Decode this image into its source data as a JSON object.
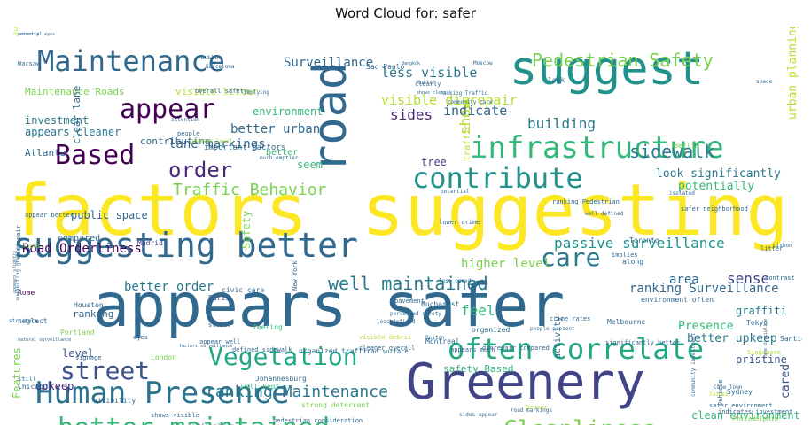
{
  "chart_data": {
    "type": "wordcloud",
    "title": "Word Cloud for: safer",
    "words": [
      {
        "text": "factors",
        "size": 80,
        "color": "#fde725"
      },
      {
        "text": "suggesting",
        "size": 80,
        "color": "#fde725"
      },
      {
        "text": "appears safer",
        "size": 68,
        "color": "#31688e"
      },
      {
        "text": "Greenery",
        "size": 56,
        "color": "#414487"
      },
      {
        "text": "suggest",
        "size": 52,
        "color": "#21918c"
      },
      {
        "text": "road",
        "size": 52,
        "color": "#31688e",
        "rotate": true
      },
      {
        "text": "suggesting better",
        "size": 38,
        "color": "#31688e"
      },
      {
        "text": "Human Presence",
        "size": 34,
        "color": "#2c728e"
      },
      {
        "text": "infrastructure",
        "size": 34,
        "color": "#35b779"
      },
      {
        "text": "contribute",
        "size": 32,
        "color": "#21918c"
      },
      {
        "text": "often correlate",
        "size": 32,
        "color": "#22a884"
      },
      {
        "text": "Maintenance",
        "size": 32,
        "color": "#31688e"
      },
      {
        "text": "better maintained",
        "size": 30,
        "color": "#35b779"
      },
      {
        "text": "Based",
        "size": 30,
        "color": "#440154"
      },
      {
        "text": "appear",
        "size": 30,
        "color": "#440154"
      },
      {
        "text": "Vegetation",
        "size": 28,
        "color": "#22a884"
      },
      {
        "text": "street",
        "size": 28,
        "color": "#3b528b"
      },
      {
        "text": "care",
        "size": 28,
        "color": "#2a788e"
      },
      {
        "text": "Cleanliness",
        "size": 26,
        "color": "#7ad151"
      },
      {
        "text": "order",
        "size": 24,
        "color": "#482878"
      },
      {
        "text": "Pedestrian Safety",
        "size": 20,
        "color": "#7ad151"
      },
      {
        "text": "well maintained",
        "size": 20,
        "color": "#2a788e"
      },
      {
        "text": "sidewalk",
        "size": 20,
        "color": "#2a788e"
      },
      {
        "text": "Traffic Behavior",
        "size": 18,
        "color": "#7ad151"
      },
      {
        "text": "ranking Maintenance",
        "size": 18,
        "color": "#2a788e"
      },
      {
        "text": "passive surveillance",
        "size": 16,
        "color": "#21918c"
      },
      {
        "text": "sides",
        "size": 16,
        "color": "#482878"
      },
      {
        "text": "building",
        "size": 16,
        "color": "#2a788e"
      },
      {
        "text": "show",
        "size": 16,
        "color": "#b5de2b",
        "rotate": true
      },
      {
        "text": "visible disrepair",
        "size": 15,
        "color": "#b5de2b"
      },
      {
        "text": "less visible",
        "size": 15,
        "color": "#2a788e"
      },
      {
        "text": "indicate",
        "size": 15,
        "color": "#31688e"
      },
      {
        "text": "Surveillance",
        "size": 14,
        "color": "#31688e"
      },
      {
        "text": "better urban",
        "size": 14,
        "color": "#31688e"
      },
      {
        "text": "lane markings",
        "size": 14,
        "color": "#31688e"
      },
      {
        "text": "sense",
        "size": 16,
        "color": "#414487"
      },
      {
        "text": "higher level",
        "size": 14,
        "color": "#7ad151"
      },
      {
        "text": "feel",
        "size": 16,
        "color": "#35b779"
      },
      {
        "text": "area",
        "size": 14,
        "color": "#31688e"
      },
      {
        "text": "ranking Surveillance",
        "size": 14,
        "color": "#31688e"
      },
      {
        "text": "better order",
        "size": 14,
        "color": "#2a788e"
      },
      {
        "text": "Road Orderliness",
        "size": 14,
        "color": "#440154"
      },
      {
        "text": "potentially",
        "size": 13,
        "color": "#35b779"
      },
      {
        "text": "look significantly",
        "size": 13,
        "color": "#2a788e"
      },
      {
        "text": "urban planning",
        "size": 13,
        "color": "#b5de2b",
        "rotate": true
      },
      {
        "text": "Presence",
        "size": 13,
        "color": "#35b779"
      },
      {
        "text": "better upkeep",
        "size": 13,
        "color": "#2a788e"
      },
      {
        "text": "graffiti",
        "size": 12,
        "color": "#2a788e"
      },
      {
        "text": "pristine",
        "size": 12,
        "color": "#3b528b"
      },
      {
        "text": "clean environment",
        "size": 12,
        "color": "#35b779"
      },
      {
        "text": "cared",
        "size": 13,
        "color": "#3b528b",
        "rotate": true
      },
      {
        "text": "public space",
        "size": 12,
        "color": "#31688e"
      },
      {
        "text": "seem",
        "size": 12,
        "color": "#35b779"
      },
      {
        "text": "tree",
        "size": 12,
        "color": "#414487"
      },
      {
        "text": "environment",
        "size": 12,
        "color": "#35b779"
      },
      {
        "text": "investment",
        "size": 12,
        "color": "#2a788e"
      },
      {
        "text": "appears cleaner",
        "size": 12,
        "color": "#2a788e"
      },
      {
        "text": "Atlanta",
        "size": 11,
        "color": "#31688e"
      },
      {
        "text": "Maintenance Roads",
        "size": 11,
        "color": "#7ad151"
      },
      {
        "text": "visible litter",
        "size": 11,
        "color": "#b5de2b"
      },
      {
        "text": "compared",
        "size": 10,
        "color": "#31688e"
      },
      {
        "text": "ranking",
        "size": 11,
        "color": "#31688e"
      },
      {
        "text": "level",
        "size": 12,
        "color": "#3b528b"
      },
      {
        "text": "upkeep",
        "size": 12,
        "color": "#482878"
      },
      {
        "text": "Features",
        "size": 12,
        "color": "#7ad151",
        "rotate": true
      },
      {
        "text": "Safety",
        "size": 12,
        "color": "#7ad151",
        "rotate": true
      },
      {
        "text": "safety Based",
        "size": 11,
        "color": "#35b779"
      },
      {
        "text": "activity",
        "size": 10,
        "color": "#31688e",
        "rotate": true
      },
      {
        "text": "traffic flow",
        "size": 10,
        "color": "#b5de2b",
        "rotate": true
      },
      {
        "text": "contributing",
        "size": 11,
        "color": "#31688e"
      },
      {
        "text": "clear lane",
        "size": 11,
        "color": "#31688e",
        "rotate": true
      },
      {
        "text": "important factors",
        "size": 9,
        "color": "#31688e"
      },
      {
        "text": "better",
        "size": 10,
        "color": "#35b779"
      },
      {
        "text": "Johannesburg",
        "size": 8,
        "color": "#31688e"
      },
      {
        "text": "well kept",
        "size": 8,
        "color": "#35b779"
      },
      {
        "text": "strong deterrent",
        "size": 8,
        "color": "#7ad151"
      },
      {
        "text": "organized traffic",
        "size": 8,
        "color": "#31688e"
      },
      {
        "text": "London",
        "size": 8,
        "color": "#7ad151"
      },
      {
        "text": "Houston",
        "size": 8,
        "color": "#31688e"
      },
      {
        "text": "Portland",
        "size": 8,
        "color": "#7ad151"
      },
      {
        "text": "Madrid",
        "size": 8,
        "color": "#414487"
      },
      {
        "text": "Paris",
        "size": 8,
        "color": "#3b528b"
      },
      {
        "text": "Rome",
        "size": 8,
        "color": "#440154"
      },
      {
        "text": "Chicago",
        "size": 8,
        "color": "#31688e"
      },
      {
        "text": "Sao Paulo",
        "size": 8,
        "color": "#31688e"
      },
      {
        "text": "Berlin",
        "size": 8,
        "color": "#7ad151"
      },
      {
        "text": "Toronto",
        "size": 8,
        "color": "#31688e"
      },
      {
        "text": "Tokyo",
        "size": 8,
        "color": "#31688e"
      },
      {
        "text": "Santiago",
        "size": 8,
        "color": "#31688e"
      },
      {
        "text": "Singapore",
        "size": 7,
        "color": "#b5de2b"
      },
      {
        "text": "Sydney",
        "size": 8,
        "color": "#31688e"
      },
      {
        "text": "Montreal",
        "size": 8,
        "color": "#31688e"
      },
      {
        "text": "Melbourne",
        "size": 8,
        "color": "#31688e"
      },
      {
        "text": "Bucharest",
        "size": 8,
        "color": "#31688e"
      },
      {
        "text": "New York",
        "size": 7,
        "color": "#31688e",
        "rotate": true
      },
      {
        "text": "civic care",
        "size": 8,
        "color": "#31688e"
      },
      {
        "text": "street",
        "size": 7,
        "color": "#31688e"
      },
      {
        "text": "feeling",
        "size": 8,
        "color": "#35b779"
      },
      {
        "text": "neglect",
        "size": 8,
        "color": "#31688e"
      },
      {
        "text": "still",
        "size": 7,
        "color": "#31688e"
      },
      {
        "text": "focus",
        "size": 7,
        "color": "#7ad151"
      },
      {
        "text": "signage",
        "size": 7,
        "color": "#31688e"
      },
      {
        "text": "eyes",
        "size": 7,
        "color": "#31688e"
      },
      {
        "text": "appear well",
        "size": 7,
        "color": "#31688e"
      },
      {
        "text": "defined sidewalk",
        "size": 7,
        "color": "#31688e"
      },
      {
        "text": "visibility",
        "size": 8,
        "color": "#31688e"
      },
      {
        "text": "shows visible",
        "size": 7,
        "color": "#31688e"
      },
      {
        "text": "people walking",
        "size": 6,
        "color": "#31688e"
      },
      {
        "text": "pedestrian consideration",
        "size": 7,
        "color": "#31688e"
      },
      {
        "text": "sides appear",
        "size": 6,
        "color": "#31688e"
      },
      {
        "text": "Denver",
        "size": 7,
        "color": "#b5de2b"
      },
      {
        "text": "road markings",
        "size": 6,
        "color": "#31688e"
      },
      {
        "text": "community investment",
        "size": 6,
        "color": "#31688e",
        "rotate": true
      },
      {
        "text": "Taipei",
        "size": 6,
        "color": "#b5de2b"
      },
      {
        "text": "Cape Town",
        "size": 6,
        "color": "#31688e"
      },
      {
        "text": "safer environment",
        "size": 7,
        "color": "#31688e"
      },
      {
        "text": "vehicle",
        "size": 7,
        "color": "#31688e",
        "rotate": true
      },
      {
        "text": "Philadelphia",
        "size": 7,
        "color": "#7ad151"
      },
      {
        "text": "indicates investment",
        "size": 7,
        "color": "#31688e"
      },
      {
        "text": "road surface",
        "size": 7,
        "color": "#31688e"
      },
      {
        "text": "cleaner overall",
        "size": 7,
        "color": "#31688e"
      },
      {
        "text": "appears much",
        "size": 7,
        "color": "#31688e"
      },
      {
        "text": "less defined",
        "size": 6,
        "color": "#31688e"
      },
      {
        "text": "visible debris",
        "size": 7,
        "color": "#b5de2b"
      },
      {
        "text": "organized",
        "size": 8,
        "color": "#31688e"
      },
      {
        "text": "people present",
        "size": 6,
        "color": "#31688e"
      },
      {
        "text": "crime rates",
        "size": 7,
        "color": "#31688e"
      },
      {
        "text": "Boston",
        "size": 6,
        "color": "#31688e"
      },
      {
        "text": "less cared",
        "size": 6,
        "color": "#31688e"
      },
      {
        "text": "pavement",
        "size": 7,
        "color": "#31688e"
      },
      {
        "text": "perceived safety",
        "size": 6,
        "color": "#31688e"
      },
      {
        "text": "environment often",
        "size": 8,
        "color": "#31688e"
      },
      {
        "text": "implies",
        "size": 7,
        "color": "#31688e"
      },
      {
        "text": "along",
        "size": 8,
        "color": "#31688e"
      },
      {
        "text": "litter",
        "size": 7,
        "color": "#31688e"
      },
      {
        "text": "contrast",
        "size": 7,
        "color": "#31688e"
      },
      {
        "text": "Lisbon",
        "size": 6,
        "color": "#31688e"
      },
      {
        "text": "safer neighborhood",
        "size": 7,
        "color": "#31688e"
      },
      {
        "text": "isolated",
        "size": 6,
        "color": "#31688e"
      },
      {
        "text": "well defined",
        "size": 6,
        "color": "#31688e"
      },
      {
        "text": "lower crime",
        "size": 7,
        "color": "#31688e"
      },
      {
        "text": "ranking Pedestrian",
        "size": 7,
        "color": "#31688e"
      },
      {
        "text": "Munich",
        "size": 6,
        "color": "#31688e"
      },
      {
        "text": "Moscow",
        "size": 6,
        "color": "#31688e"
      },
      {
        "text": "Bangkok",
        "size": 5,
        "color": "#31688e"
      },
      {
        "text": "Warsaw",
        "size": 7,
        "color": "#31688e"
      },
      {
        "text": "Dublin",
        "size": 6,
        "color": "#31688e"
      },
      {
        "text": "Barcelona",
        "size": 6,
        "color": "#31688e"
      },
      {
        "text": "implying",
        "size": 6,
        "color": "#31688e"
      },
      {
        "text": "overall safety",
        "size": 7,
        "color": "#31688e"
      },
      {
        "text": "people",
        "size": 7,
        "color": "#31688e"
      },
      {
        "text": "greater level",
        "size": 6,
        "color": "#b5de2b"
      },
      {
        "text": "much emptier",
        "size": 6,
        "color": "#31688e"
      },
      {
        "text": "attention",
        "size": 6,
        "color": "#31688e"
      },
      {
        "text": "shows clear",
        "size": 5,
        "color": "#31688e"
      },
      {
        "text": "ranking Traffic",
        "size": 6,
        "color": "#31688e"
      },
      {
        "text": "community care",
        "size": 6,
        "color": "#31688e"
      },
      {
        "text": "clearly",
        "size": 7,
        "color": "#31688e"
      },
      {
        "text": "look",
        "size": 8,
        "color": "#31688e"
      },
      {
        "text": "space",
        "size": 6,
        "color": "#31688e"
      },
      {
        "text": "natural surveillance",
        "size": 5,
        "color": "#31688e"
      },
      {
        "text": "factors surveillance",
        "size": 5,
        "color": "#31688e"
      },
      {
        "text": "potential",
        "size": 6,
        "color": "#31688e"
      },
      {
        "text": "significantly better",
        "size": 7,
        "color": "#31688e"
      },
      {
        "text": "appear better",
        "size": 7,
        "color": "#31688e"
      },
      {
        "text": "disrepair",
        "size": 7,
        "color": "#31688e",
        "rotate": true
      },
      {
        "text": "disrepair compared",
        "size": 7,
        "color": "#31688e"
      },
      {
        "text": "lane discipline",
        "size": 5,
        "color": "#31688e",
        "rotate": true
      },
      {
        "text": "appears slightly",
        "size": 5,
        "color": "#31688e",
        "rotate": true
      },
      {
        "text": "suggesting greater",
        "size": 6,
        "color": "#31688e",
        "rotate": true
      },
      {
        "text": "structure",
        "size": 6,
        "color": "#31688e"
      },
      {
        "text": "potential eyes",
        "size": 5,
        "color": "#31688e"
      },
      {
        "text": "security",
        "size": 5,
        "color": "#31688e"
      },
      {
        "text": "Rio de Janeiro",
        "size": 6,
        "color": "#b5de2b",
        "rotate": true
      }
    ]
  }
}
